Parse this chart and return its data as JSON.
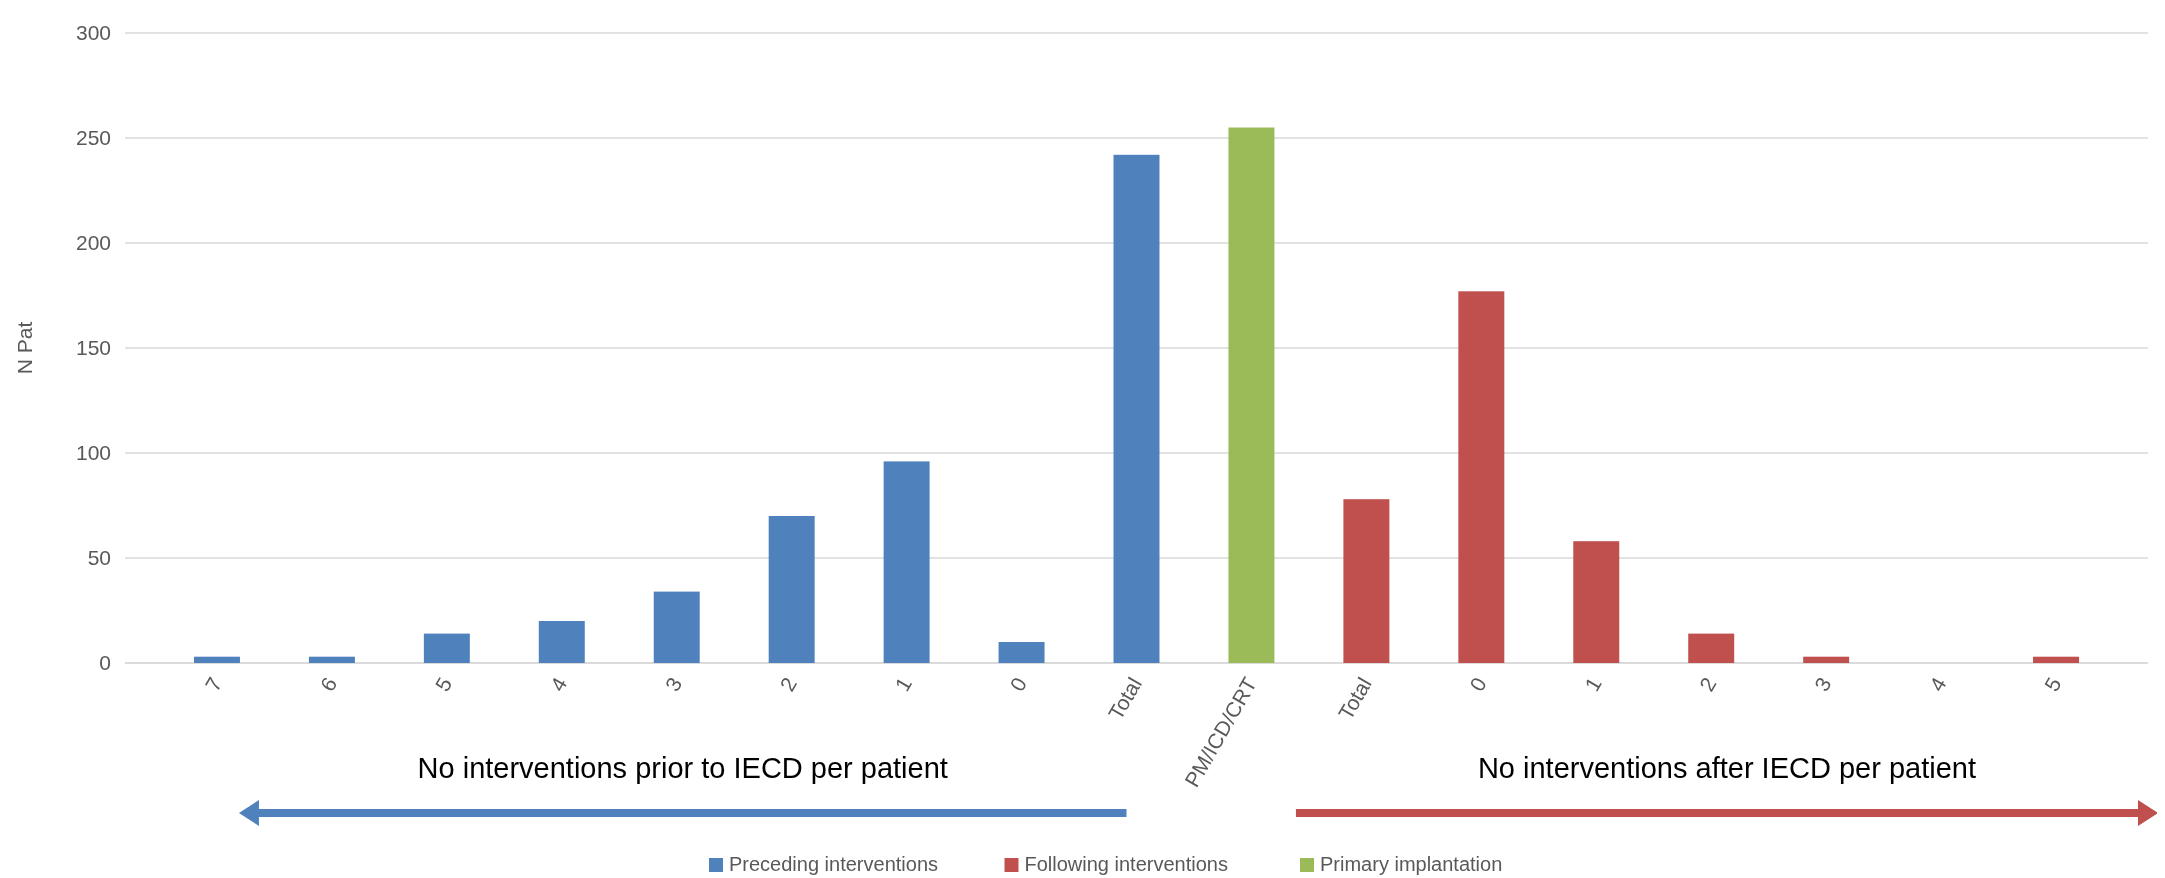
{
  "chart_data": {
    "type": "bar",
    "ylabel": "N Pat",
    "categories": [
      "7",
      "6",
      "5",
      "4",
      "3",
      "2",
      "1",
      "0",
      "Total",
      "PM/ICD/CRT",
      "Total",
      "0",
      "1",
      "2",
      "3",
      "4",
      "5"
    ],
    "series": [
      {
        "name": "Preceding interventions",
        "color": "#4f81bd",
        "values": [
          3,
          3,
          14,
          20,
          34,
          70,
          96,
          10,
          242,
          null,
          null,
          null,
          null,
          null,
          null,
          null,
          null
        ]
      },
      {
        "name": "Following interventions",
        "color": "#c0504d",
        "values": [
          null,
          null,
          null,
          null,
          null,
          null,
          null,
          null,
          null,
          null,
          78,
          177,
          58,
          14,
          3,
          0,
          3
        ]
      },
      {
        "name": "Primary implantation",
        "color": "#9bbb59",
        "values": [
          null,
          null,
          null,
          null,
          null,
          null,
          null,
          null,
          null,
          255,
          null,
          null,
          null,
          null,
          null,
          null,
          null
        ]
      }
    ],
    "ylim": [
      0,
      300
    ],
    "yticks": [
      0,
      50,
      100,
      150,
      200,
      250,
      300
    ],
    "grid": "y",
    "legend": "bottom",
    "annotations": [
      "No interventions prior to IECD per patient",
      "No interventions after IECD per patient"
    ]
  }
}
